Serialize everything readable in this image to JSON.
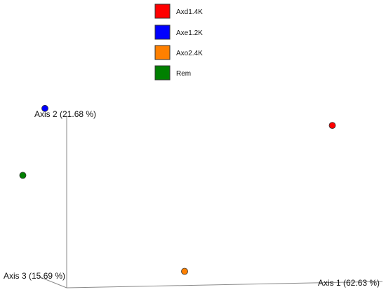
{
  "chart_data": {
    "type": "scatter",
    "projection": "3d",
    "title": "",
    "axes": [
      {
        "label": "Axis 1 (62.63 %)"
      },
      {
        "label": "Axis 2 (21.68 %)"
      },
      {
        "label": "Axis 3 (15.69 %)"
      }
    ],
    "grid": false,
    "legend_position": "top-center",
    "series": [
      {
        "name": "Axd1.4K",
        "color": "#ff0000",
        "values": [
          [
            0.93,
            0.83,
            0.1
          ]
        ]
      },
      {
        "name": "Axe1.2K",
        "color": "#0000ff",
        "values": [
          [
            0.02,
            0.96,
            0.1
          ]
        ]
      },
      {
        "name": "Axo2.4K",
        "color": "#ff8000",
        "values": [
          [
            0.48,
            0.0,
            0.12
          ]
        ]
      },
      {
        "name": "Rem",
        "color": "#008000",
        "values": [
          [
            -0.05,
            0.58,
            0.1
          ]
        ]
      }
    ]
  }
}
